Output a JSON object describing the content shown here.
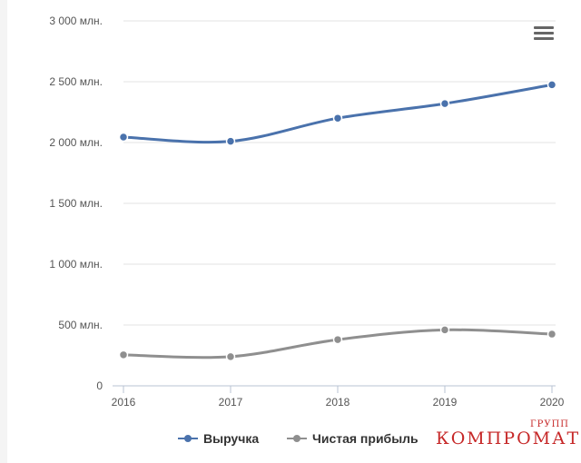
{
  "chart_data": {
    "type": "line",
    "title": "",
    "xlabel": "",
    "ylabel": "",
    "x": [
      "2016",
      "2017",
      "2018",
      "2019",
      "2020"
    ],
    "ylim": [
      0,
      3000
    ],
    "y_ticks": [
      0,
      500,
      1000,
      1500,
      2000,
      2500,
      3000
    ],
    "y_tick_labels": [
      "0",
      "500 млн.",
      "1 000 млн.",
      "1 500 млн.",
      "2 000 млн.",
      "2 500 млн.",
      "3 000 млн."
    ],
    "grid": true,
    "legend_position": "bottom",
    "series": [
      {
        "name": "Выручка",
        "color": "#4a72ac",
        "values": [
          2045,
          2010,
          2200,
          2320,
          2475
        ]
      },
      {
        "name": "Чистая прибыль",
        "color": "#8f8f8f",
        "values": [
          255,
          240,
          380,
          460,
          425
        ]
      }
    ]
  },
  "menu": {
    "icon": "hamburger-menu-icon"
  },
  "watermark": {
    "main": "КОМПРОМАТ",
    "small": "ГРУПП"
  }
}
